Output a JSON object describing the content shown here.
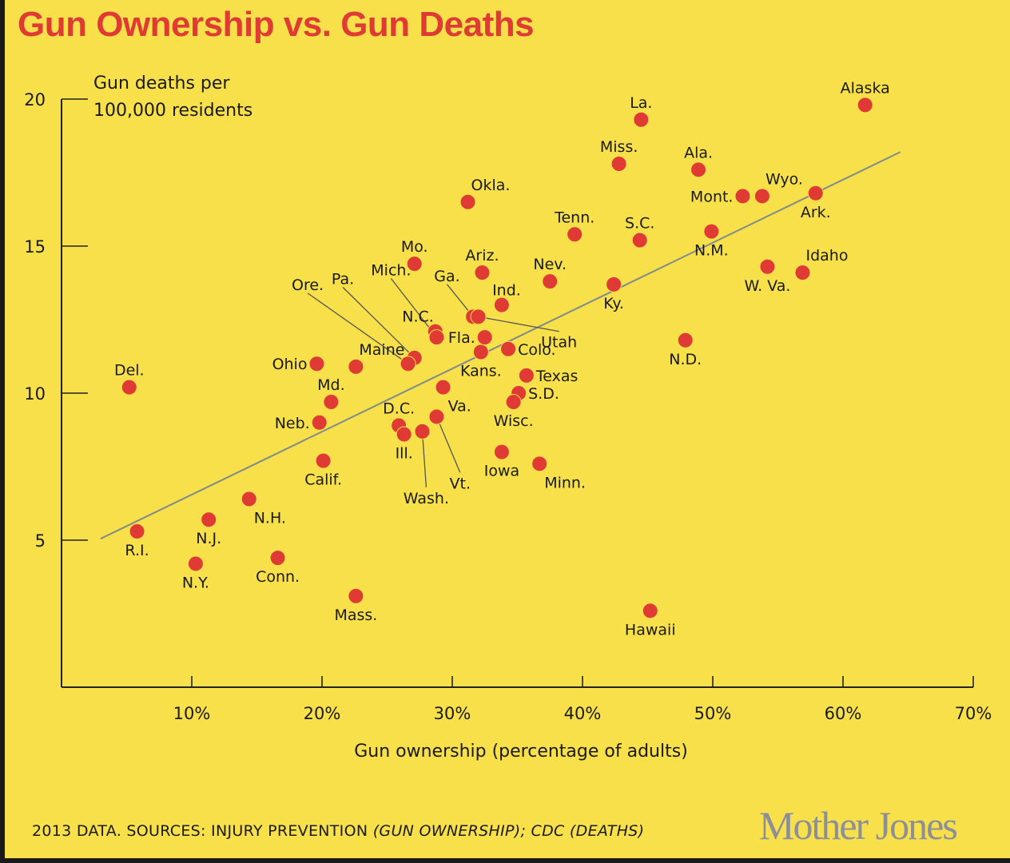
{
  "chart_data": {
    "type": "scatter",
    "title": "Gun Ownership vs. Gun Deaths",
    "ylabel_lines": [
      "Gun deaths per",
      "100,000 residents"
    ],
    "xlabel": "Gun ownership (percentage of adults)",
    "xlim": [
      0,
      70
    ],
    "ylim": [
      0,
      20
    ],
    "x_ticks": [
      10,
      20,
      30,
      40,
      50,
      60,
      70
    ],
    "x_tick_labels": [
      "10%",
      "20%",
      "30%",
      "40%",
      "50%",
      "60%",
      "70%"
    ],
    "y_ticks": [
      5,
      10,
      15,
      20
    ],
    "y_tick_labels": [
      "5",
      "10",
      "15",
      "20"
    ],
    "grid": false,
    "legend": "none",
    "point_color": "#e03a35",
    "trendline": {
      "x": [
        3.0,
        64.4
      ],
      "y": [
        5.05,
        18.2
      ],
      "color": "#7f8a8a"
    },
    "points": [
      {
        "label": "Alaska",
        "x": 61.7,
        "y": 19.8,
        "lpos": "above"
      },
      {
        "label": "La.",
        "x": 44.5,
        "y": 19.3,
        "lpos": "above"
      },
      {
        "label": "Miss.",
        "x": 42.8,
        "y": 17.8,
        "lpos": "above"
      },
      {
        "label": "Ala.",
        "x": 48.9,
        "y": 17.6,
        "lpos": "above"
      },
      {
        "label": "Mont.",
        "x": 52.3,
        "y": 16.7,
        "lpos": "left"
      },
      {
        "label": "Wyo.",
        "x": 53.8,
        "y": 16.7,
        "lpos": "aboveright"
      },
      {
        "label": "Ark.",
        "x": 57.9,
        "y": 16.8,
        "lpos": "below"
      },
      {
        "label": "Okla.",
        "x": 31.2,
        "y": 16.5,
        "lpos": "aboveright"
      },
      {
        "label": "Tenn.",
        "x": 39.4,
        "y": 15.4,
        "lpos": "above"
      },
      {
        "label": "S.C.",
        "x": 44.4,
        "y": 15.2,
        "lpos": "above"
      },
      {
        "label": "N.M.",
        "x": 49.9,
        "y": 15.5,
        "lpos": "below"
      },
      {
        "label": "Mo.",
        "x": 27.1,
        "y": 14.4,
        "lpos": "above"
      },
      {
        "label": "Ariz.",
        "x": 32.3,
        "y": 14.1,
        "lpos": "above"
      },
      {
        "label": "Nev.",
        "x": 37.5,
        "y": 13.8,
        "lpos": "above"
      },
      {
        "label": "Ky.",
        "x": 42.4,
        "y": 13.7,
        "lpos": "below"
      },
      {
        "label": "W. Va.",
        "x": 54.2,
        "y": 14.3,
        "lpos": "below"
      },
      {
        "label": "Idaho",
        "x": 56.9,
        "y": 14.1,
        "lpos": "aboveright"
      },
      {
        "label": "Ind.",
        "x": 33.8,
        "y": 13.0,
        "lpos": "aboveleft2"
      },
      {
        "label": "Ga.",
        "x": 31.6,
        "y": 12.6,
        "lpos": "leader",
        "lx": 29.6,
        "ly": 13.7
      },
      {
        "label": "Utah",
        "x": 32.0,
        "y": 12.6,
        "lpos": "leader",
        "lx": 38.2,
        "ly": 12.1
      },
      {
        "label": "N.C.",
        "x": 28.7,
        "y": 12.1,
        "lpos": "aboveleft"
      },
      {
        "label": "Mich.",
        "x": 28.8,
        "y": 11.9,
        "lpos": "leader",
        "lx": 25.3,
        "ly": 13.9
      },
      {
        "label": "Fla.",
        "x": 32.5,
        "y": 11.9,
        "lpos": "left"
      },
      {
        "label": "Kans.",
        "x": 32.2,
        "y": 11.4,
        "lpos": "below"
      },
      {
        "label": "Colo.",
        "x": 34.3,
        "y": 11.5,
        "lpos": "right"
      },
      {
        "label": "Pa.",
        "x": 27.1,
        "y": 11.2,
        "lpos": "leader",
        "lx": 21.6,
        "ly": 13.6
      },
      {
        "label": "Ore.",
        "x": 26.6,
        "y": 11.0,
        "lpos": "leader",
        "lx": 18.9,
        "ly": 13.4
      },
      {
        "label": "Ohio",
        "x": 19.6,
        "y": 11.0,
        "lpos": "left"
      },
      {
        "label": "Maine",
        "x": 22.6,
        "y": 10.9,
        "lpos": "aboveright"
      },
      {
        "label": "Texas",
        "x": 35.7,
        "y": 10.6,
        "lpos": "right"
      },
      {
        "label": "S.D.",
        "x": 35.1,
        "y": 10.0,
        "lpos": "right"
      },
      {
        "label": "Wisc.",
        "x": 34.7,
        "y": 9.7,
        "lpos": "below"
      },
      {
        "label": "Va.",
        "x": 29.3,
        "y": 10.2,
        "lpos": "belowright"
      },
      {
        "label": "Md.",
        "x": 20.7,
        "y": 9.7,
        "lpos": "above"
      },
      {
        "label": "Neb.",
        "x": 19.8,
        "y": 9.0,
        "lpos": "left"
      },
      {
        "label": "Vt.",
        "x": 28.8,
        "y": 9.2,
        "lpos": "leader",
        "lx": 30.6,
        "ly": 7.3
      },
      {
        "label": "D.C.",
        "x": 25.9,
        "y": 8.9,
        "lpos": "above"
      },
      {
        "label": "Ill.",
        "x": 26.3,
        "y": 8.6,
        "lpos": "below"
      },
      {
        "label": "Wash.",
        "x": 27.7,
        "y": 8.7,
        "lpos": "leader",
        "lx": 28.0,
        "ly": 6.8
      },
      {
        "label": "Del.",
        "x": 5.2,
        "y": 10.2,
        "lpos": "above"
      },
      {
        "label": "Iowa",
        "x": 33.8,
        "y": 8.0,
        "lpos": "below"
      },
      {
        "label": "Minn.",
        "x": 36.7,
        "y": 7.6,
        "lpos": "belowright"
      },
      {
        "label": "Calif.",
        "x": 20.1,
        "y": 7.7,
        "lpos": "below"
      },
      {
        "label": "N.D.",
        "x": 47.9,
        "y": 11.8,
        "lpos": "below"
      },
      {
        "label": "N.H.",
        "x": 14.4,
        "y": 6.4,
        "lpos": "belowright"
      },
      {
        "label": "N.J.",
        "x": 11.3,
        "y": 5.7,
        "lpos": "below"
      },
      {
        "label": "R.I.",
        "x": 5.8,
        "y": 5.3,
        "lpos": "below"
      },
      {
        "label": "N.Y.",
        "x": 10.3,
        "y": 4.2,
        "lpos": "below"
      },
      {
        "label": "Conn.",
        "x": 16.6,
        "y": 4.4,
        "lpos": "below"
      },
      {
        "label": "Mass.",
        "x": 22.6,
        "y": 3.1,
        "lpos": "below"
      },
      {
        "label": "Hawaii",
        "x": 45.2,
        "y": 2.6,
        "lpos": "below"
      }
    ]
  },
  "footer": {
    "source_prefix": "2013 DATA. SOURCES: INJURY PREVENTION ",
    "source_italic_1": "(GUN OWNERSHIP); CDC (DEATHS)",
    "brand": "Mother Jones"
  }
}
